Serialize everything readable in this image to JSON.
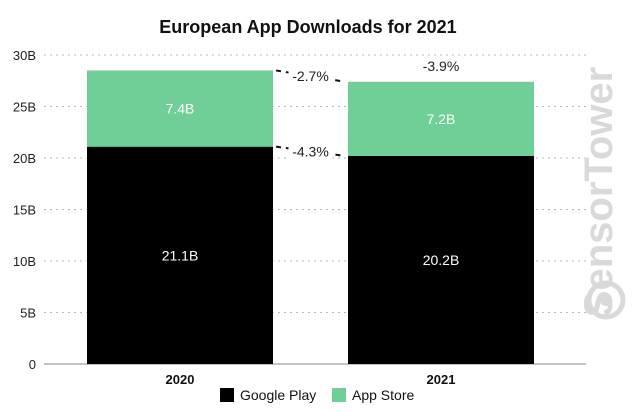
{
  "chart_data": {
    "type": "bar",
    "stacked": true,
    "title": "European App Downloads for 2021",
    "categories": [
      "2020",
      "2021"
    ],
    "series": [
      {
        "name": "Google Play",
        "values": [
          21.1,
          20.2
        ],
        "labels": [
          "21.1B",
          "20.2B"
        ],
        "color": "#000000"
      },
      {
        "name": "App Store",
        "values": [
          7.4,
          7.2
        ],
        "labels": [
          "7.4B",
          "7.2B"
        ],
        "color": "#6fcf97"
      }
    ],
    "yticks": [
      "0",
      "5B",
      "10B",
      "15B",
      "20B",
      "25B",
      "30B"
    ],
    "ylim": [
      0,
      30
    ],
    "grid": true,
    "legend": "bottom",
    "annotations": [
      {
        "text": "-2.7%",
        "series": "App Store"
      },
      {
        "text": "-4.3%",
        "series": "Google Play"
      },
      {
        "text": "-3.9%",
        "series": "Total"
      }
    ]
  },
  "watermark": {
    "text": "SensorTower"
  },
  "colors": {
    "google_play": "#000000",
    "app_store": "#6fcf97"
  }
}
